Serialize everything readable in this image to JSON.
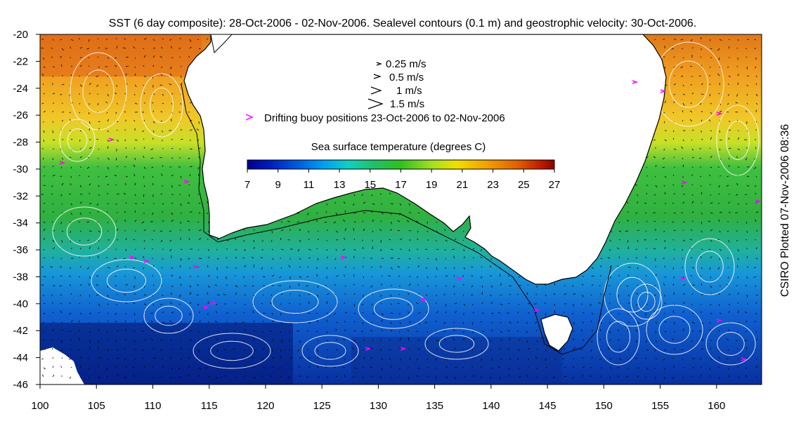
{
  "title": "SST (6 day composite): 28-Oct-2006 - 02-Nov-2006. Sealevel contours (0.1 m) and geostrophic velocity: 30-Oct-2006.",
  "credit": "CSIRO Plotted 07-Nov-2006 08:36",
  "map": {
    "lon_range": [
      100,
      164
    ],
    "lat_range": [
      -46,
      -20
    ],
    "x_ticks": [
      "100",
      "105",
      "110",
      "115",
      "120",
      "125",
      "130",
      "135",
      "140",
      "145",
      "150",
      "155",
      "160"
    ],
    "y_ticks": [
      "-20",
      "-22",
      "-24",
      "-26",
      "-28",
      "-30",
      "-32",
      "-34",
      "-36",
      "-38",
      "-40",
      "-42",
      "-44",
      "-46"
    ],
    "land_color": "#ffffff",
    "coast_color": "#000000",
    "contour_color": "#ffffff",
    "vector_color": "#000000",
    "buoy_color": "#ff00ff"
  },
  "legend": {
    "velocity_keys": [
      {
        "label": "0.25 m/s"
      },
      {
        "label": "0.5 m/s"
      },
      {
        "label": "1 m/s"
      },
      {
        "label": "1.5 m/s"
      }
    ],
    "buoy_label": "Drifting buoy positions 23-Oct-2006 to 02-Nov-2006",
    "colorbar_title": "Sea surface temperature (degrees C)",
    "colorbar_ticks": [
      "7",
      "9",
      "11",
      "13",
      "15",
      "17",
      "19",
      "21",
      "23",
      "25",
      "27"
    ],
    "colorbar_colors": [
      "#00008f",
      "#0020c0",
      "#0060e0",
      "#00a0f0",
      "#10d0c0",
      "#20c060",
      "#30c020",
      "#a0e020",
      "#f0e000",
      "#f0a000",
      "#e06000",
      "#c02000",
      "#900000"
    ]
  }
}
